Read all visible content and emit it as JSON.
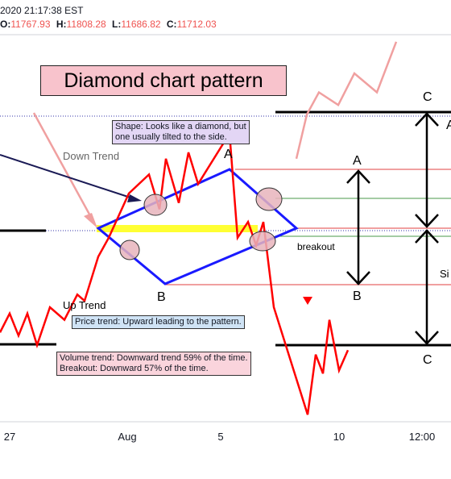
{
  "header": {
    "timestamp": "2020 21:17:38 EST",
    "ohlc": [
      {
        "key": "O:",
        "value": "11767.93"
      },
      {
        "key": "H:",
        "value": "11808.28"
      },
      {
        "key": "L:",
        "value": "11686.82"
      },
      {
        "key": "C:",
        "value": "11712.03"
      }
    ]
  },
  "annotations": {
    "title": "Diamond chart pattern",
    "shape_note": "Shape: Looks like a diamond, but\none usually tilted to the side.",
    "down_trend": "Down Trend",
    "up_trend": "Up Trend",
    "price_trend": "Price trend: Upward leading to the pattern.",
    "volume_note": "Volume trend: Downward trend 59% of the time.\nBreakout: Downward 57% of the time.",
    "breakout": "breakout",
    "point_a": "A",
    "point_b": "B",
    "measure_a": "A",
    "measure_b": "B",
    "target_c_top": "C",
    "target_c_bottom": "C",
    "edge_glyph": "A",
    "edge_text": "Si"
  },
  "colors": {
    "price": "#ff0000",
    "price_faded": "#f0a0a0",
    "diamond": "#1a1aff",
    "dotted": "#3333aa",
    "highlight": "#ffff33",
    "circle_fill": "#e8b4bc",
    "title_bg": "#f8c3cc",
    "shape_note_bg": "#e3d6f5",
    "price_trend_bg": "#cfe3f5",
    "volume_bg": "#fad4dc",
    "green_line": "#4a9a4a",
    "red_line": "#e04040"
  },
  "chart_data": {
    "type": "line",
    "x_ticks": [
      "27",
      "Aug",
      "5",
      "10",
      "12:00"
    ],
    "series": [
      {
        "values": [
          11740,
          11770,
          11735,
          11770,
          11720,
          11780,
          11760,
          11800,
          11790,
          11860,
          11890,
          11960,
          11990,
          11935,
          12015,
          11945,
          12025,
          11975,
          12055,
          11890,
          11915,
          11878,
          11915,
          11780,
          11610,
          11705,
          11675,
          11760,
          11680,
          11712
        ]
      },
      {
        "values": [
          12015,
          12085,
          12120,
          12100,
          12150,
          12120,
          12200
        ]
      }
    ],
    "ylim": [
      11600,
      12210
    ]
  }
}
